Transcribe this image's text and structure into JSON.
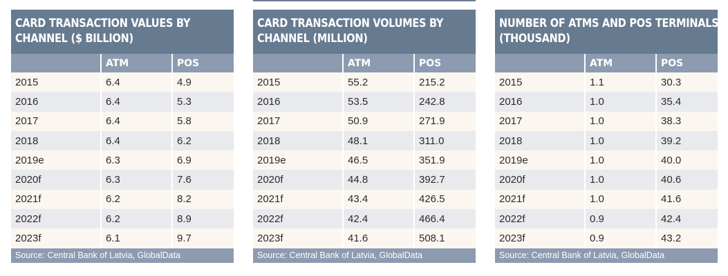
{
  "tables": [
    {
      "title_lines": [
        "CARD TRANSACTION VALUES BY",
        "CHANNEL ($ BILLION)"
      ],
      "headers": [
        "",
        "ATM",
        "POS"
      ],
      "rows": [
        [
          "2015",
          "6.4",
          "4.9"
        ],
        [
          "2016",
          "6.4",
          "5.3"
        ],
        [
          "2017",
          "6.4",
          "5.8"
        ],
        [
          "2018",
          "6.4",
          "6.2"
        ],
        [
          "2019e",
          "6.3",
          "6.9"
        ],
        [
          "2020f",
          "6.3",
          "7.6"
        ],
        [
          "2021f",
          "6.2",
          "8.2"
        ],
        [
          "2022f",
          "6.2",
          "8.9"
        ],
        [
          "2023f",
          "6.1",
          "9.7"
        ]
      ],
      "source": "Source: Central Bank of Latvia, GlobalData"
    },
    {
      "title_lines": [
        "CARD TRANSACTION VOLUMES BY",
        "CHANNEL (MILLION)"
      ],
      "headers": [
        "",
        "ATM",
        "POS"
      ],
      "rows": [
        [
          "2015",
          "55.2",
          "215.2"
        ],
        [
          "2016",
          "53.5",
          "242.8"
        ],
        [
          "2017",
          "50.9",
          "271.9"
        ],
        [
          "2018",
          "48.1",
          "311.0"
        ],
        [
          "2019e",
          "46.5",
          "351.9"
        ],
        [
          "2020f",
          "44.8",
          "392.7"
        ],
        [
          "2021f",
          "43.4",
          "426.5"
        ],
        [
          "2022f",
          "42.4",
          "466.4"
        ],
        [
          "2023f",
          "41.6",
          "508.1"
        ]
      ],
      "source": "Source: Central Bank of Latvia, GlobalData"
    },
    {
      "title_lines": [
        "NUMBER OF ATMS AND POS TERMINALS",
        "(THOUSAND)"
      ],
      "headers": [
        "",
        "ATM",
        "POS"
      ],
      "rows": [
        [
          "2015",
          "1.1",
          "30.3"
        ],
        [
          "2016",
          "1.0",
          "35.4"
        ],
        [
          "2017",
          "1.0",
          "38.3"
        ],
        [
          "2018",
          "1.0",
          "39.2"
        ],
        [
          "2019e",
          "1.0",
          "40.0"
        ],
        [
          "2020f",
          "1.0",
          "40.6"
        ],
        [
          "2021f",
          "1.0",
          "41.6"
        ],
        [
          "2022f",
          "0.9",
          "42.4"
        ],
        [
          "2023f",
          "0.9",
          "43.2"
        ]
      ],
      "source": "Source: Central Bank of Latvia, GlobalData"
    }
  ],
  "colors": {
    "title_bg": "#667a90",
    "header_bg": "#8c9bb0",
    "row_odd": "#fbf7f0",
    "row_even": "#e9eaee"
  }
}
